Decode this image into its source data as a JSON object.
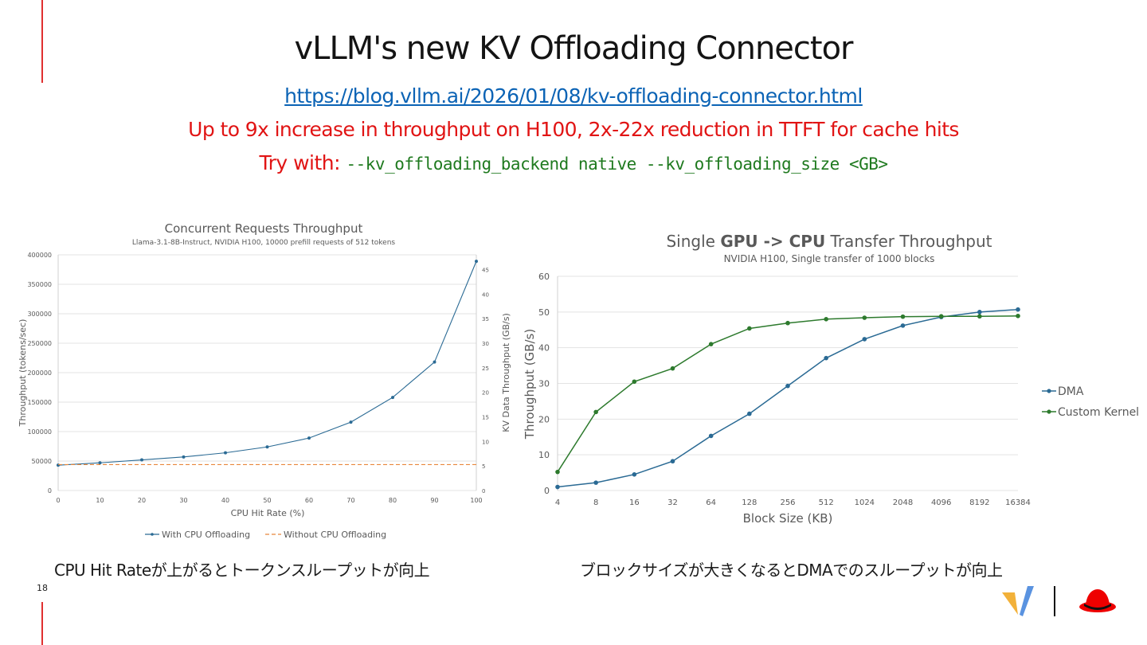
{
  "slide": {
    "title": "vLLM's new KV Offloading Connector",
    "link": "https://blog.vllm.ai/2026/01/08/kv-offloading-connector.html",
    "claim": "Up to 9x increase in throughput on H100, 2x-22x reduction in TTFT for cache hits",
    "try_label": "Try with: ",
    "try_command": "--kv_offloading_backend native --kv_offloading_size <GB>",
    "caption_left": "CPU Hit Rateが上がるとトークンスループットが向上",
    "caption_right": "ブロックサイズが大きくなるとDMAでのスループットが向上",
    "page_number": "18",
    "accent_color": "#e03030",
    "link_color": "#0b63b5",
    "claim_color": "#e11414",
    "command_color": "#1f7a1f",
    "logos": [
      "vllm-logo",
      "redhat-logo"
    ]
  },
  "chart_data": [
    {
      "type": "line",
      "title": "Concurrent Requests Throughput",
      "subtitle": "Llama-3.1-8B-Instruct, NVIDIA H100, 10000 prefill requests of 512 tokens",
      "xlabel": "CPU Hit Rate (%)",
      "ylabel": "Throughput (tokens/sec)",
      "y2label": "KV Data Throughput (GB/s)",
      "x": [
        0,
        10,
        20,
        30,
        40,
        50,
        60,
        70,
        80,
        90,
        100
      ],
      "xticks": [
        "0",
        "10",
        "20",
        "30",
        "40",
        "50",
        "60",
        "70",
        "80",
        "90",
        "100"
      ],
      "xlim": [
        0,
        100
      ],
      "ylim": [
        0,
        400000
      ],
      "yticks": [
        "0",
        "50000",
        "100000",
        "150000",
        "200000",
        "250000",
        "300000",
        "350000",
        "400000"
      ],
      "y2lim": [
        0,
        48
      ],
      "y2ticks": [
        "0",
        "5",
        "10",
        "15",
        "20",
        "25",
        "30",
        "35",
        "40",
        "45"
      ],
      "grid": true,
      "legend_position": "bottom",
      "series": [
        {
          "name": "With CPU Offloading",
          "color": "#2a6a94",
          "style": "solid-marker",
          "values": [
            43000,
            47000,
            52000,
            57000,
            64000,
            74000,
            89000,
            116000,
            158000,
            218000,
            389000
          ]
        },
        {
          "name": "Without CPU Offloading",
          "color": "#e8873c",
          "style": "dashed",
          "values": [
            44000,
            44000,
            44000,
            44000,
            44000,
            44000,
            44000,
            44000,
            44000,
            44000,
            44000
          ]
        }
      ]
    },
    {
      "type": "line",
      "title_parts": [
        "Single ",
        "GPU -> CPU",
        " Transfer Throughput"
      ],
      "subtitle": "NVIDIA H100, Single transfer of 1000 blocks",
      "xlabel": "Block Size (KB)",
      "ylabel": "Throughput (GB/s)",
      "categories": [
        "4",
        "8",
        "16",
        "32",
        "64",
        "128",
        "256",
        "512",
        "1024",
        "2048",
        "4096",
        "8192",
        "16384"
      ],
      "ylim": [
        0,
        60
      ],
      "yticks": [
        "0",
        "10",
        "20",
        "30",
        "40",
        "50",
        "60"
      ],
      "grid": true,
      "legend_position": "right",
      "series": [
        {
          "name": "DMA",
          "color": "#2a6a94",
          "values": [
            1,
            2.2,
            4.5,
            8.2,
            15.3,
            21.5,
            29.3,
            37.1,
            42.4,
            46.2,
            48.6,
            50,
            50.7
          ]
        },
        {
          "name": "Custom Kernel",
          "color": "#2d7a2d",
          "values": [
            5.2,
            22,
            30.5,
            34.2,
            41,
            45.4,
            46.9,
            48,
            48.4,
            48.7,
            48.8,
            48.8,
            48.9
          ]
        }
      ]
    }
  ]
}
